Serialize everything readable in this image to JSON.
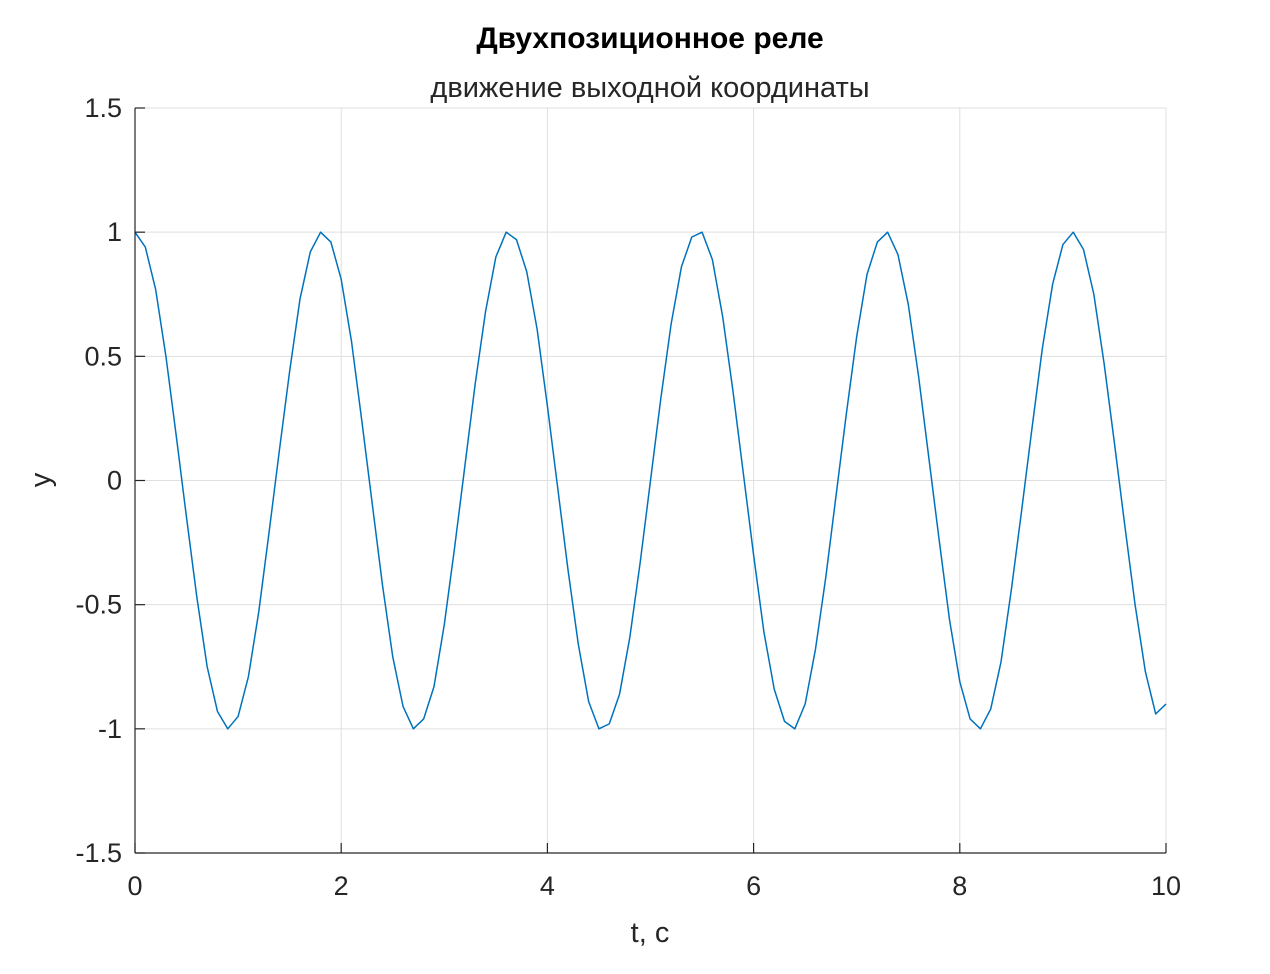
{
  "chart_data": {
    "type": "line",
    "title": "Двухпозиционное реле",
    "subtitle": "движение выходной координаты",
    "xlabel": "t, с",
    "ylabel": "y",
    "xlim": [
      0,
      10
    ],
    "ylim": [
      -1.5,
      1.5
    ],
    "xticks": [
      0,
      2,
      4,
      6,
      8,
      10
    ],
    "xtick_labels": [
      "0",
      "2",
      "4",
      "6",
      "8",
      "10"
    ],
    "yticks": [
      -1.5,
      -1,
      -0.5,
      0,
      0.5,
      1,
      1.5
    ],
    "ytick_labels": [
      "-1.5",
      "-1",
      "-0.5",
      "0",
      "0.5",
      "1",
      "1.5"
    ],
    "grid": true,
    "line_color": "#0072bd",
    "series": [
      {
        "x": [
          0,
          0.1,
          0.2,
          0.3,
          0.4,
          0.5,
          0.6,
          0.7,
          0.8,
          0.9,
          1.0,
          1.1,
          1.2,
          1.3,
          1.4,
          1.5,
          1.6,
          1.7,
          1.8,
          1.9,
          2.0,
          2.1,
          2.2,
          2.3,
          2.4,
          2.5,
          2.6,
          2.7,
          2.8,
          2.9,
          3.0,
          3.1,
          3.2,
          3.3,
          3.4,
          3.5,
          3.6,
          3.7,
          3.8,
          3.9,
          4.0,
          4.1,
          4.2,
          4.3,
          4.4,
          4.5,
          4.6,
          4.7,
          4.8,
          4.9,
          5.0,
          5.1,
          5.2,
          5.3,
          5.4,
          5.5,
          5.6,
          5.7,
          5.8,
          5.9,
          6.0,
          6.1,
          6.2,
          6.3,
          6.4,
          6.5,
          6.6,
          6.7,
          6.8,
          6.9,
          7.0,
          7.1,
          7.2,
          7.3,
          7.4,
          7.5,
          7.6,
          7.7,
          7.8,
          7.9,
          8.0,
          8.1,
          8.2,
          8.3,
          8.4,
          8.5,
          8.6,
          8.7,
          8.8,
          8.9,
          9.0,
          9.1,
          9.2,
          9.3,
          9.4,
          9.5,
          9.6,
          9.7,
          9.8,
          9.9,
          10.0
        ],
        "y": [
          1.0,
          0.94,
          0.77,
          0.5,
          0.18,
          -0.15,
          -0.47,
          -0.75,
          -0.93,
          -1.0,
          -0.95,
          -0.79,
          -0.53,
          -0.21,
          0.12,
          0.44,
          0.73,
          0.92,
          1.0,
          0.96,
          0.81,
          0.56,
          0.24,
          -0.09,
          -0.42,
          -0.71,
          -0.91,
          -1.0,
          -0.96,
          -0.83,
          -0.58,
          -0.27,
          0.06,
          0.39,
          0.68,
          0.9,
          1.0,
          0.97,
          0.84,
          0.61,
          0.3,
          -0.03,
          -0.36,
          -0.66,
          -0.89,
          -1.0,
          -0.98,
          -0.86,
          -0.63,
          -0.33,
          0.0,
          0.33,
          0.63,
          0.86,
          0.98,
          1.0,
          0.89,
          0.66,
          0.36,
          0.03,
          -0.3,
          -0.61,
          -0.84,
          -0.97,
          -1.0,
          -0.9,
          -0.68,
          -0.39,
          -0.06,
          0.27,
          0.58,
          0.83,
          0.96,
          1.0,
          0.91,
          0.71,
          0.42,
          0.09,
          -0.24,
          -0.56,
          -0.81,
          -0.96,
          -1.0,
          -0.92,
          -0.73,
          -0.44,
          -0.12,
          0.21,
          0.53,
          0.79,
          0.95,
          1.0,
          0.93,
          0.75,
          0.47,
          0.15,
          -0.18,
          -0.5,
          -0.77,
          -0.94,
          -0.9
        ]
      }
    ]
  }
}
